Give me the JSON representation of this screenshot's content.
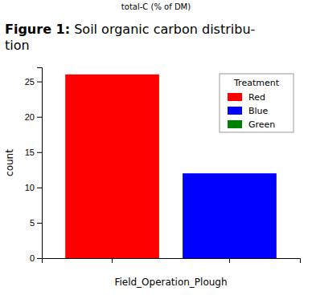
{
  "chart_data": {
    "type": "bar",
    "title": "Figure 1: Soil organic carbon distribu-\ntion",
    "annotations": [
      "total-C (% of DM)"
    ],
    "x_label": "Field_Operation_Plough",
    "y_label": "count",
    "categories": [
      null,
      null
    ],
    "series": [
      {
        "name": "Red",
        "color": "#ff0000",
        "values": [
          26,
          null
        ]
      },
      {
        "name": "Blue",
        "color": "#0000ff",
        "values": [
          null,
          12
        ]
      },
      {
        "name": "Green",
        "color": "#008000",
        "values": [
          null,
          null
        ]
      }
    ],
    "legend_title": "Treatment",
    "legend": "upper right",
    "ylim": [
      0,
      27
    ],
    "yticks": [
      0,
      5,
      10,
      15,
      20,
      25
    ],
    "grid": false,
    "tick_labels": "y"
  }
}
